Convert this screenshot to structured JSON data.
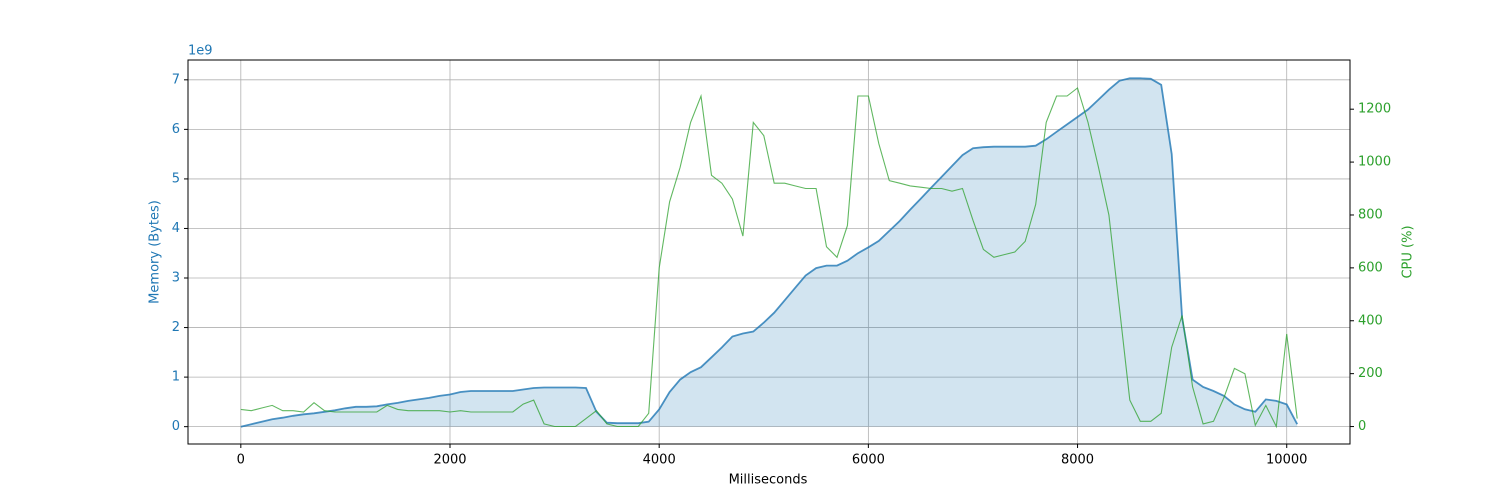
{
  "chart_data": {
    "type": "line",
    "x_label": "Milliseconds",
    "y_label": "Memory (Bytes)",
    "y2_label": "CPU (%)",
    "y_offset_label": "1e9",
    "xlim": [
      -505,
      10605
    ],
    "xticks": [
      0,
      2000,
      4000,
      6000,
      8000,
      10000
    ],
    "ylim": [
      -0.35,
      7.4
    ],
    "yticks": [
      0,
      1,
      2,
      3,
      4,
      5,
      6,
      7
    ],
    "y2lim": [
      -66,
      1386
    ],
    "y2ticks": [
      0,
      200,
      400,
      600,
      800,
      1000,
      1200
    ],
    "grid": true,
    "y_color": "#1f77b4",
    "y2_color": "#2ca02c",
    "x": [
      0,
      100,
      200,
      300,
      400,
      500,
      600,
      700,
      800,
      900,
      1000,
      1100,
      1200,
      1300,
      1400,
      1500,
      1600,
      1700,
      1800,
      1900,
      2000,
      2100,
      2200,
      2300,
      2400,
      2500,
      2600,
      2700,
      2800,
      2900,
      3000,
      3100,
      3200,
      3300,
      3400,
      3500,
      3600,
      3700,
      3800,
      3900,
      4000,
      4100,
      4200,
      4300,
      4400,
      4500,
      4600,
      4700,
      4800,
      4900,
      5000,
      5100,
      5200,
      5300,
      5400,
      5500,
      5600,
      5700,
      5800,
      5900,
      6000,
      6100,
      6200,
      6300,
      6400,
      6500,
      6600,
      6700,
      6800,
      6900,
      7000,
      7100,
      7200,
      7300,
      7400,
      7500,
      7600,
      7700,
      7800,
      7900,
      8000,
      8100,
      8200,
      8300,
      8400,
      8500,
      8600,
      8700,
      8800,
      8900,
      9000,
      9100,
      9200,
      9300,
      9400,
      9500,
      9600,
      9700,
      9800,
      9900,
      10000,
      10100
    ],
    "series": [
      {
        "color": "#1f77b4",
        "fill": "#1f77b4",
        "axis": "y",
        "values": [
          0,
          0.05,
          0.1,
          0.15,
          0.18,
          0.22,
          0.25,
          0.27,
          0.3,
          0.33,
          0.37,
          0.4,
          0.4,
          0.41,
          0.45,
          0.48,
          0.52,
          0.55,
          0.58,
          0.62,
          0.65,
          0.7,
          0.72,
          0.72,
          0.72,
          0.72,
          0.72,
          0.75,
          0.78,
          0.79,
          0.79,
          0.79,
          0.79,
          0.78,
          0.3,
          0.08,
          0.07,
          0.07,
          0.07,
          0.1,
          0.35,
          0.7,
          0.95,
          1.1,
          1.2,
          1.4,
          1.6,
          1.82,
          1.88,
          1.92,
          2.1,
          2.3,
          2.55,
          2.8,
          3.05,
          3.2,
          3.25,
          3.25,
          3.35,
          3.5,
          3.62,
          3.75,
          3.95,
          4.15,
          4.38,
          4.6,
          4.82,
          5.04,
          5.26,
          5.48,
          5.62,
          5.64,
          5.65,
          5.65,
          5.65,
          5.65,
          5.67,
          5.8,
          5.95,
          6.1,
          6.25,
          6.4,
          6.6,
          6.8,
          6.98,
          7.03,
          7.03,
          7.02,
          6.9,
          5.5,
          2.2,
          0.95,
          0.8,
          0.72,
          0.62,
          0.45,
          0.35,
          0.3,
          0.55,
          0.52,
          0.45,
          0.05
        ]
      },
      {
        "color": "#2ca02c",
        "axis": "y2",
        "values": [
          65,
          60,
          70,
          80,
          60,
          60,
          55,
          90,
          60,
          55,
          55,
          55,
          55,
          55,
          80,
          65,
          60,
          60,
          60,
          60,
          55,
          60,
          55,
          55,
          55,
          55,
          55,
          85,
          100,
          10,
          0,
          0,
          0,
          30,
          60,
          10,
          0,
          0,
          0,
          50,
          600,
          850,
          980,
          1150,
          1250,
          950,
          920,
          860,
          720,
          1150,
          1100,
          920,
          920,
          910,
          900,
          900,
          680,
          640,
          760,
          1250,
          1250,
          1070,
          930,
          920,
          910,
          905,
          900,
          900,
          890,
          900,
          780,
          670,
          640,
          650,
          660,
          700,
          840,
          1150,
          1250,
          1250,
          1280,
          1150,
          980,
          800,
          450,
          100,
          20,
          20,
          50,
          300,
          420,
          150,
          10,
          20,
          110,
          220,
          200,
          5,
          80,
          0,
          350,
          30
        ]
      }
    ]
  }
}
